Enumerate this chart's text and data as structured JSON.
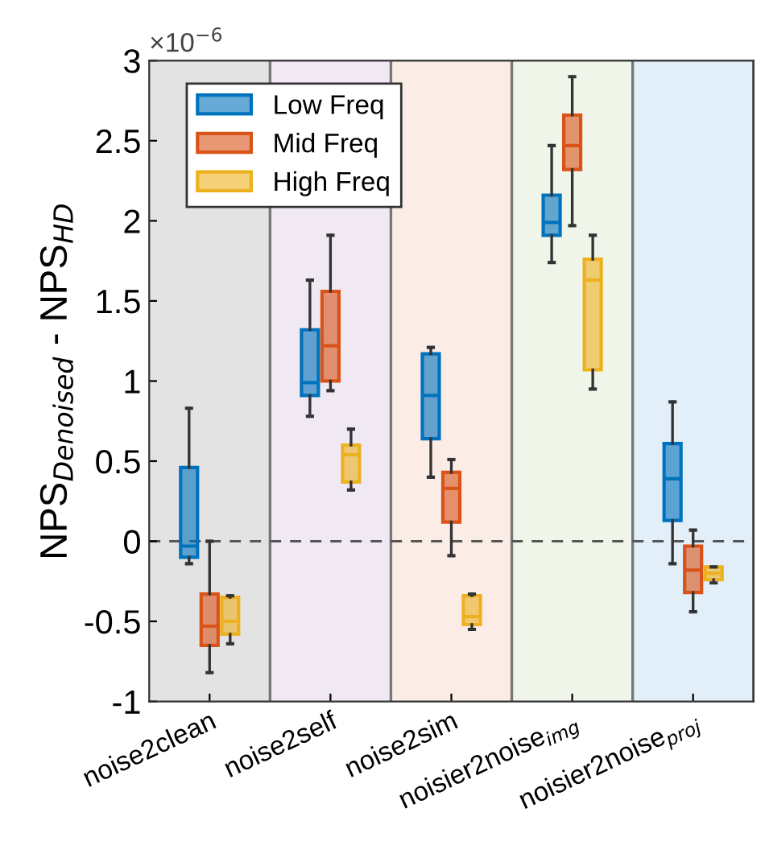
{
  "chart_data": {
    "type": "box",
    "ylabel": "NPS$_{Denoised}$ - NPS$_{HD}$",
    "annotations": [
      "×10$^{−6}$"
    ],
    "categories": [
      "noise2clean",
      "noise2self",
      "noise2sim",
      "noisier2noise$_{img}$",
      "noisier2noise$_{proj}$"
    ],
    "series": [
      {
        "name": "Low Freq",
        "color": "#0072bd",
        "boxes": [
          {
            "low": -0.14,
            "q1": -0.1,
            "median": -0.03,
            "q3": 0.46,
            "high": 0.83
          },
          {
            "low": 0.78,
            "q1": 0.91,
            "median": 0.99,
            "q3": 1.32,
            "high": 1.63
          },
          {
            "low": 0.4,
            "q1": 0.64,
            "median": 0.91,
            "q3": 1.17,
            "high": 1.21
          },
          {
            "low": 1.74,
            "q1": 1.91,
            "median": 1.99,
            "q3": 2.16,
            "high": 2.47
          },
          {
            "low": -0.14,
            "q1": 0.13,
            "median": 0.39,
            "q3": 0.61,
            "high": 0.87
          }
        ]
      },
      {
        "name": "Mid Freq",
        "color": "#d95319",
        "boxes": [
          {
            "low": -0.82,
            "q1": -0.65,
            "median": -0.53,
            "q3": -0.33,
            "high": 0.0
          },
          {
            "low": 0.94,
            "q1": 1.0,
            "median": 1.22,
            "q3": 1.56,
            "high": 1.91
          },
          {
            "low": -0.09,
            "q1": 0.12,
            "median": 0.33,
            "q3": 0.43,
            "high": 0.51
          },
          {
            "low": 1.97,
            "q1": 2.32,
            "median": 2.47,
            "q3": 2.66,
            "high": 2.9
          },
          {
            "low": -0.44,
            "q1": -0.32,
            "median": -0.18,
            "q3": -0.03,
            "high": 0.07
          }
        ]
      },
      {
        "name": "High Freq",
        "color": "#edb120",
        "boxes": [
          {
            "low": -0.64,
            "q1": -0.58,
            "median": -0.5,
            "q3": -0.35,
            "high": -0.34
          },
          {
            "low": 0.32,
            "q1": 0.37,
            "median": 0.54,
            "q3": 0.6,
            "high": 0.7
          },
          {
            "low": -0.55,
            "q1": -0.52,
            "median": -0.47,
            "q3": -0.34,
            "high": -0.33
          },
          {
            "low": 0.95,
            "q1": 1.07,
            "median": 1.63,
            "q3": 1.76,
            "high": 1.91
          },
          {
            "low": -0.26,
            "q1": -0.24,
            "median": -0.2,
            "q3": -0.16,
            "high": -0.16
          }
        ]
      }
    ],
    "ylim": [
      -1,
      3
    ],
    "yticks": [
      -1,
      -0.5,
      0,
      0.5,
      1,
      1.5,
      2,
      2.5,
      3
    ],
    "ref_lines": [
      {
        "axis": "y",
        "value": 0,
        "color": "#555555",
        "line_style": "dashed"
      }
    ],
    "bands": [
      {
        "axis": "x",
        "from": "noise2clean",
        "to": "noise2clean",
        "color": "#e3e3e3"
      },
      {
        "axis": "x",
        "from": "noise2self",
        "to": "noise2self",
        "color": "#f0e8f2"
      },
      {
        "axis": "x",
        "from": "noise2sim",
        "to": "noise2sim",
        "color": "#fbece6"
      },
      {
        "axis": "x",
        "from": "noisier2noise$_{img}$",
        "to": "noisier2noise$_{img}$",
        "color": "#eff5e9"
      },
      {
        "axis": "x",
        "from": "noisier2noise$_{proj}$",
        "to": "noisier2noise$_{proj}$",
        "color": "#e2eef8"
      }
    ],
    "legend": "top left",
    "grid": false
  }
}
